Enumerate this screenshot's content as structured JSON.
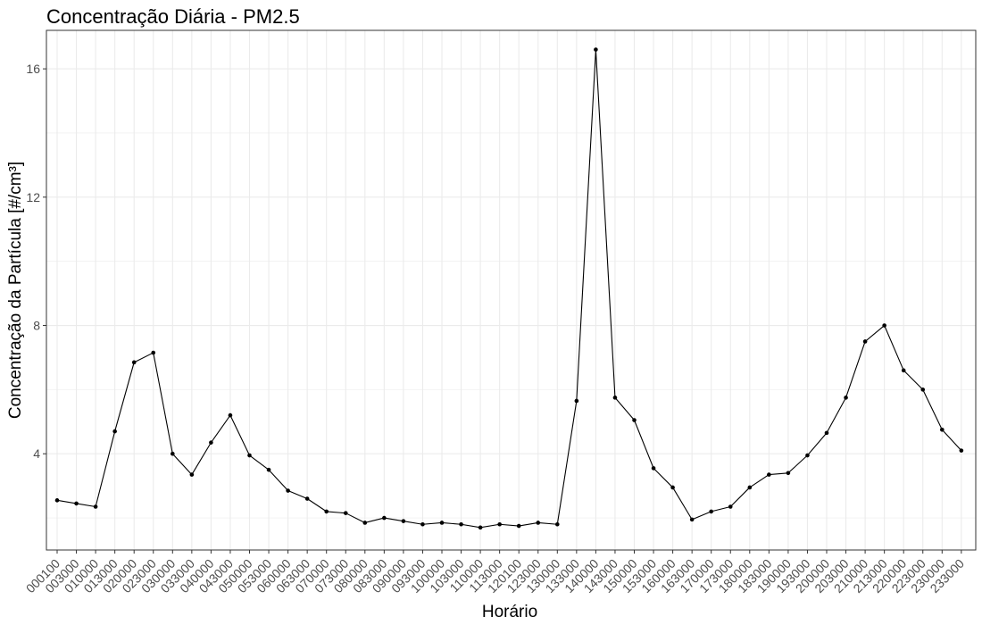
{
  "chart_data": {
    "type": "line",
    "title": "Concentração Diária - PM2.5",
    "xlabel": "Horário",
    "ylabel": "Concentração da Partícula [#/cm³]",
    "ylim": [
      1.0,
      17.2
    ],
    "yticks": [
      4,
      8,
      12,
      16
    ],
    "grid": true,
    "series": [
      {
        "values": [
          2.55,
          2.45,
          2.35,
          4.7,
          6.85,
          7.15,
          4.0,
          3.35,
          4.35,
          5.2,
          3.95,
          3.5,
          2.85,
          2.6,
          2.2,
          2.15,
          1.85,
          2.0,
          1.9,
          1.8,
          1.85,
          1.8,
          1.7,
          1.8,
          1.75,
          1.85,
          1.8,
          5.65,
          16.6,
          5.75,
          5.05,
          3.55,
          2.95,
          1.95,
          2.2,
          2.35,
          2.95,
          3.35,
          3.4,
          3.95,
          4.65,
          5.75,
          7.5,
          8.0,
          6.6,
          6.0,
          4.75,
          4.1
        ]
      }
    ],
    "categories": [
      "000100",
      "003000",
      "010000",
      "013000",
      "020000",
      "023000",
      "030000",
      "033000",
      "040000",
      "043000",
      "050000",
      "053000",
      "060000",
      "063000",
      "070000",
      "073000",
      "080000",
      "083000",
      "090000",
      "093000",
      "100000",
      "103000",
      "110000",
      "113000",
      "120100",
      "123000",
      "130000",
      "133000",
      "140000",
      "143000",
      "150000",
      "153000",
      "160000",
      "163000",
      "170000",
      "173000",
      "180000",
      "183000",
      "190000",
      "193000",
      "200000",
      "203000",
      "210000",
      "213000",
      "220000",
      "223000",
      "230000",
      "233000"
    ],
    "colors": {
      "line": "#000000",
      "grid": "#ebebeb",
      "panel_border": "#333333",
      "tick_text": "#4d4d4d"
    }
  }
}
